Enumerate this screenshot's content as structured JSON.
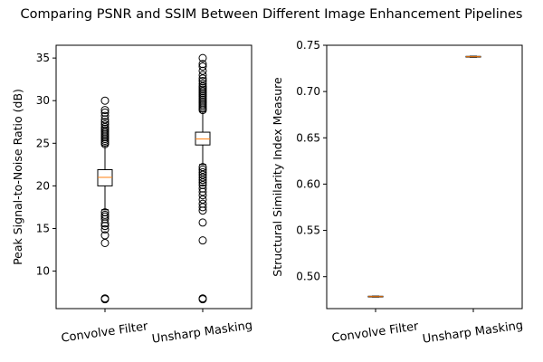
{
  "figure": {
    "suptitle": "Comparing PSNR and SSIM Between Different Image Enhancement Pipelines"
  },
  "chart_data": [
    {
      "type": "box",
      "ylabel": "Peak Signal-to-Noise Ratio (dB)",
      "ylim": [
        5.6,
        36.5
      ],
      "yticks": [
        10,
        15,
        20,
        25,
        30,
        35
      ],
      "categories": [
        "Convolve Filter",
        "Unsharp Masking"
      ],
      "boxes": [
        {
          "name": "Convolve Filter",
          "median": 21.0,
          "q1": 20.0,
          "q3": 21.9,
          "whisker_low": 17.2,
          "whisker_high": 24.7,
          "outliers": [
            6.7,
            6.8,
            13.3,
            14.2,
            14.9,
            15.3,
            15.6,
            16.1,
            16.4,
            16.6,
            16.9,
            24.9,
            25.1,
            25.3,
            25.5,
            25.7,
            25.9,
            26.1,
            26.3,
            26.5,
            26.7,
            26.9,
            27.2,
            27.5,
            27.8,
            28.2,
            28.6,
            28.9,
            30.0
          ]
        },
        {
          "name": "Unsharp Masking",
          "median": 25.5,
          "q1": 24.8,
          "q3": 26.3,
          "whisker_low": 22.5,
          "whisker_high": 28.7,
          "outliers": [
            6.7,
            6.8,
            13.6,
            15.7,
            17.1,
            17.5,
            17.9,
            18.4,
            18.9,
            19.3,
            19.7,
            20.1,
            20.4,
            20.7,
            21.0,
            21.3,
            21.6,
            21.9,
            22.2,
            28.9,
            29.1,
            29.3,
            29.5,
            29.7,
            29.9,
            30.1,
            30.3,
            30.5,
            30.7,
            30.9,
            31.1,
            31.3,
            31.5,
            31.7,
            32.0,
            32.3,
            32.6,
            33.0,
            33.5,
            34.0,
            34.3,
            35.0
          ]
        }
      ]
    },
    {
      "type": "box",
      "ylabel": "Structural Similarity Index Measure",
      "ylim": [
        0.4655,
        0.75
      ],
      "yticks": [
        0.5,
        0.55,
        0.6,
        0.65,
        0.7,
        0.75
      ],
      "categories": [
        "Convolve Filter",
        "Unsharp Masking"
      ],
      "boxes": [
        {
          "name": "Convolve Filter",
          "median": 0.4785,
          "q1": 0.4781,
          "q3": 0.4789,
          "whisker_low": 0.478,
          "whisker_high": 0.479,
          "outliers": []
        },
        {
          "name": "Unsharp Masking",
          "median": 0.7376,
          "q1": 0.7372,
          "q3": 0.738,
          "whisker_low": 0.737,
          "whisker_high": 0.7382,
          "outliers": []
        }
      ]
    }
  ],
  "colors": {
    "median": "#ff7f0e",
    "box": "#000000",
    "background": "#ffffff"
  }
}
